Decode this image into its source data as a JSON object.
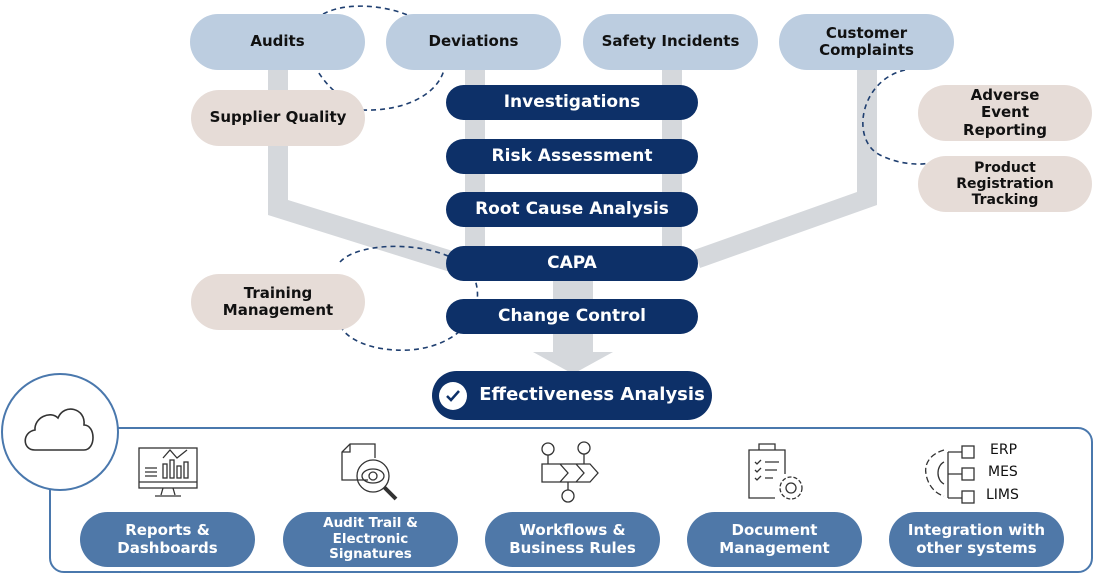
{
  "sources": [
    "Audits",
    "Deviations",
    "Safety Incidents",
    "Customer Complaints"
  ],
  "side_items": {
    "supplier": "Supplier Quality",
    "training": "Training Management",
    "adverse": "Adverse Event Reporting",
    "product": "Product Registration Tracking"
  },
  "process_steps": [
    "Investigations",
    "Risk Assessment",
    "Root Cause Analysis",
    "CAPA",
    "Change Control"
  ],
  "outcome": {
    "label": "Effectiveness Analysis",
    "icon": "check-circle-icon"
  },
  "platform": {
    "icon": "cloud-icon",
    "modules": [
      {
        "label": "Reports & Dashboards",
        "icon": "monitor-chart-icon"
      },
      {
        "label": "Audit Trail & Electronic Signatures",
        "icon": "document-magnifier-eye-icon"
      },
      {
        "label": "Workflows & Business Rules",
        "icon": "workflow-chevrons-icon"
      },
      {
        "label": "Document Management",
        "icon": "clipboard-gear-icon"
      },
      {
        "label": "Integration with other systems",
        "icon": "gear-systems-icon"
      }
    ],
    "systems": [
      "ERP",
      "MES",
      "LIMS"
    ]
  },
  "colors": {
    "source": "#bccde0",
    "side": "#e6dcd7",
    "step": "#0d3068",
    "module": "#4f78a8",
    "connector": "#d5d8dc",
    "border": "#4a78ad"
  }
}
